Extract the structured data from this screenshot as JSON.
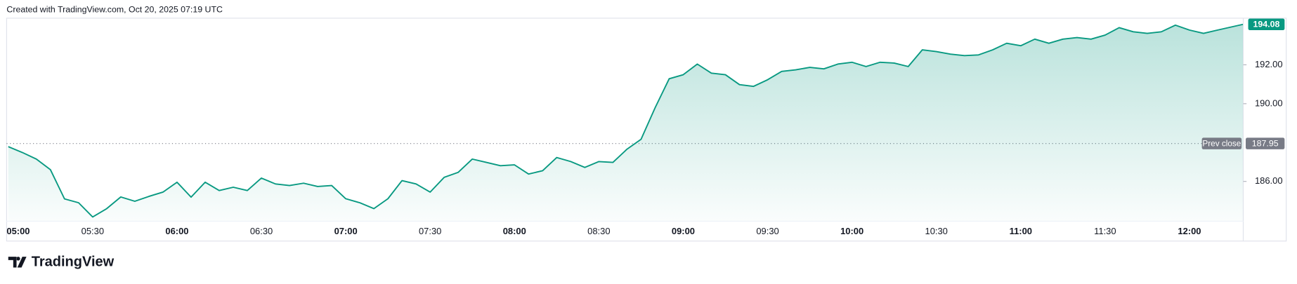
{
  "chart_data": {
    "type": "area",
    "source_note": "Created with TradingView.com, Oct 20, 2025 07:19 UTC",
    "brand": "TradingView",
    "color": "#089981",
    "x": [
      "05:00",
      "05:05",
      "05:10",
      "05:15",
      "05:20",
      "05:25",
      "05:30",
      "05:35",
      "05:40",
      "05:45",
      "05:50",
      "05:55",
      "06:00",
      "06:05",
      "06:10",
      "06:15",
      "06:20",
      "06:25",
      "06:30",
      "06:35",
      "06:40",
      "06:45",
      "06:50",
      "06:55",
      "07:00",
      "07:05",
      "07:10",
      "07:15",
      "07:20",
      "07:25",
      "07:30",
      "07:35",
      "07:40",
      "07:45",
      "07:50",
      "07:55",
      "08:00",
      "08:05",
      "08:10",
      "08:15",
      "08:20",
      "08:25",
      "08:30",
      "08:35",
      "08:40",
      "08:45",
      "08:50",
      "08:55",
      "09:00",
      "09:05",
      "09:10",
      "09:15",
      "09:20",
      "09:25",
      "09:30",
      "09:35",
      "09:40",
      "09:45",
      "09:50",
      "09:55",
      "10:00",
      "10:05",
      "10:10",
      "10:15",
      "10:20",
      "10:25",
      "10:30",
      "10:35",
      "10:40",
      "10:45",
      "10:50",
      "10:55",
      "11:00",
      "11:05",
      "11:10",
      "11:15",
      "11:20",
      "11:25",
      "11:30",
      "11:35",
      "11:40",
      "11:45",
      "11:50",
      "11:55",
      "12:00",
      "12:05",
      "12:10",
      "12:19"
    ],
    "values": [
      187.79,
      187.49,
      187.15,
      186.6,
      185.1,
      184.9,
      184.17,
      184.6,
      185.2,
      184.98,
      185.23,
      185.45,
      185.96,
      185.19,
      185.96,
      185.53,
      185.7,
      185.53,
      186.17,
      185.87,
      185.79,
      185.91,
      185.74,
      185.79,
      185.11,
      184.9,
      184.6,
      185.11,
      186.04,
      185.87,
      185.45,
      186.21,
      186.47,
      187.15,
      186.98,
      186.81,
      186.85,
      186.38,
      186.55,
      187.23,
      187.02,
      186.72,
      187.02,
      186.98,
      187.66,
      188.17,
      189.79,
      191.28,
      191.49,
      192.04,
      191.57,
      191.49,
      190.98,
      190.89,
      191.23,
      191.66,
      191.74,
      191.87,
      191.79,
      192.04,
      192.13,
      191.91,
      192.13,
      192.09,
      191.91,
      192.77,
      192.68,
      192.55,
      192.47,
      192.51,
      192.77,
      193.11,
      192.98,
      193.32,
      193.11,
      193.32,
      193.4,
      193.32,
      193.53,
      193.91,
      193.7,
      193.62,
      193.7,
      194.04,
      193.79,
      193.62,
      193.79,
      194.08
    ],
    "xlim": [
      "05:00",
      "12:19"
    ],
    "xticks": [
      "05:00",
      "05:30",
      "06:00",
      "06:30",
      "07:00",
      "07:30",
      "08:00",
      "08:30",
      "09:00",
      "09:30",
      "10:00",
      "10:30",
      "11:00",
      "11:30",
      "12:00"
    ],
    "ylim": [
      183.95,
      194.4
    ],
    "yticks": [
      {
        "value": 186,
        "label": "186.00"
      },
      {
        "value": 190,
        "label": "190.00"
      },
      {
        "value": 192,
        "label": "192.00"
      }
    ],
    "prev_close": {
      "label": "Prev close",
      "value": 187.95
    }
  }
}
